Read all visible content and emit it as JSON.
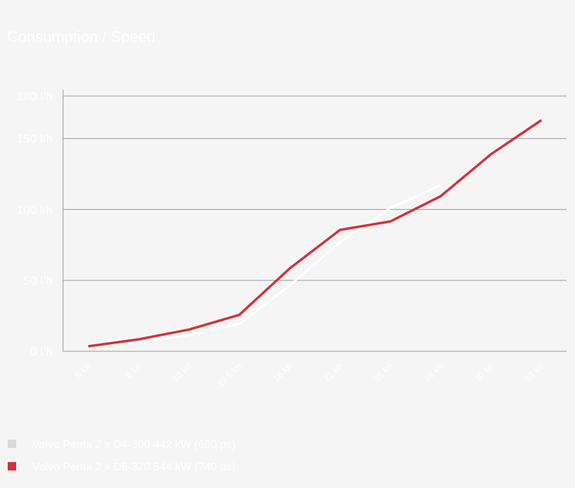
{
  "chart_data": {
    "type": "line",
    "title": "Consumption / Speed",
    "categories": [
      "5 kn",
      "8 kn",
      "10 kn",
      "12.5 kn",
      "16 kn",
      "22 kn",
      "25 kn",
      "28 kn",
      "30 kn",
      "33 kn"
    ],
    "series": [
      {
        "name": "Volvo Penta 2 x D4-300 442 kW (600 ps)",
        "color": "#ffffff",
        "legend_color": "#d9d9d9",
        "values": [
          3.5,
          6.4,
          11.4,
          19.3,
          46.5,
          77,
          101,
          117,
          null,
          null
        ]
      },
      {
        "name": "Volvo Penta 2 x D6-370 544 kW (740 ps)",
        "color": "#d1323b",
        "legend_color": "#d1323b",
        "values": [
          3.5,
          8.4,
          15.3,
          25.7,
          58.4,
          85.6,
          91.6,
          109.4,
          139,
          163
        ]
      }
    ],
    "ylim": [
      0,
      180
    ],
    "yticks": [
      {
        "value": 0,
        "label": "0 l/h"
      },
      {
        "value": 50,
        "label": "50 l/h"
      },
      {
        "value": 100,
        "label": "100 l/h"
      },
      {
        "value": 150,
        "label": "150 l/h"
      },
      {
        "value": 180,
        "label": "180 l/h"
      }
    ],
    "grid": true
  }
}
